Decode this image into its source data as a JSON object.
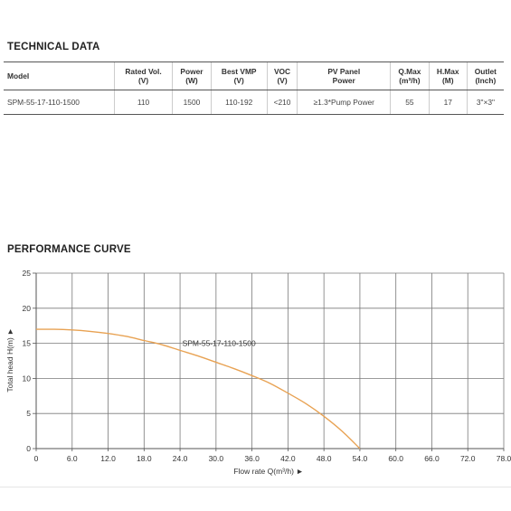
{
  "tech_section": {
    "title": "TECHNICAL DATA",
    "columns": [
      [
        "Model"
      ],
      [
        "Rated Vol.",
        "(V)"
      ],
      [
        "Power",
        "(W)"
      ],
      [
        "Best VMP",
        "(V)"
      ],
      [
        "VOC",
        "(V)"
      ],
      [
        "PV Panel",
        "Power"
      ],
      [
        "Q.Max",
        "(m³/h)"
      ],
      [
        "H.Max",
        "(M)"
      ],
      [
        "Outlet",
        "(Inch)"
      ]
    ],
    "rows": [
      [
        "SPM-55-17-110-1500",
        "110",
        "1500",
        "110-192",
        "<210",
        "≥1.3*Pump Power",
        "55",
        "17",
        "3\"×3\""
      ]
    ]
  },
  "perf_section": {
    "title": "PERFORMANCE CURVE"
  },
  "chart_data": {
    "type": "line",
    "title": "",
    "xlabel": "Flow rate Q(m³/h) ►",
    "ylabel": "Total head H(m) ►",
    "xlim": [
      0,
      78
    ],
    "ylim": [
      0,
      25
    ],
    "x_ticks": [
      "0",
      "6.0",
      "12.0",
      "18.0",
      "24.0",
      "30.0",
      "36.0",
      "42.0",
      "48.0",
      "54.0",
      "60.0",
      "66.0",
      "72.0",
      "78.0"
    ],
    "y_ticks": [
      "0",
      "5",
      "10",
      "15",
      "20",
      "25"
    ],
    "grid": true,
    "series": [
      {
        "name": "SPM-55-17-110-1500",
        "color": "#e8a253",
        "x": [
          0,
          3,
          6,
          9,
          12,
          15,
          18,
          21,
          24,
          27,
          30,
          33,
          36,
          39,
          42,
          45,
          48,
          51,
          54
        ],
        "y": [
          17.0,
          17.0,
          16.9,
          16.7,
          16.4,
          16.0,
          15.4,
          14.8,
          14.0,
          13.2,
          12.3,
          11.4,
          10.4,
          9.3,
          7.9,
          6.4,
          4.6,
          2.5,
          0.0
        ]
      }
    ]
  }
}
